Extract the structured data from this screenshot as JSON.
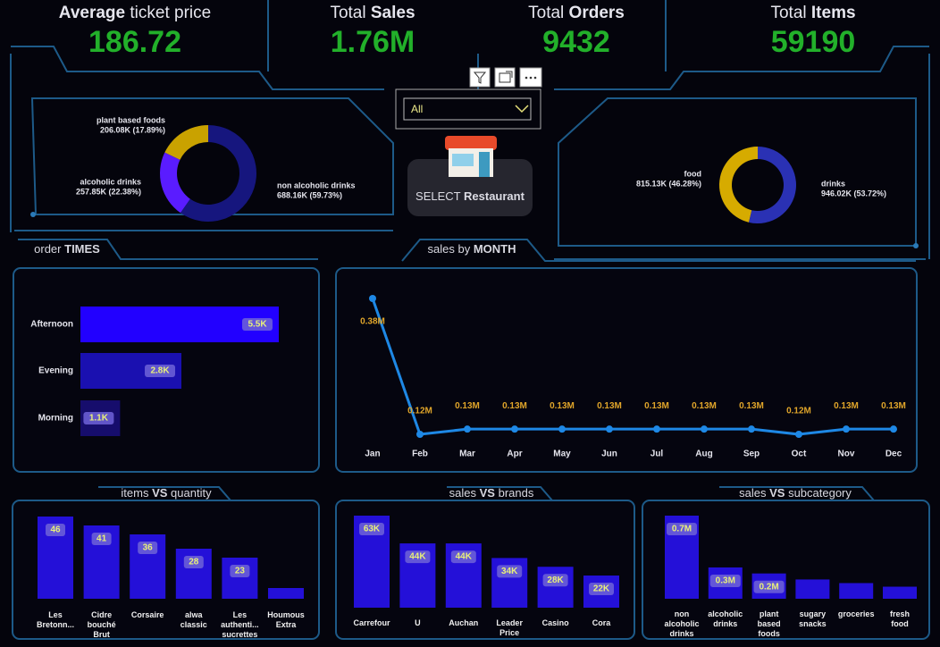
{
  "kpis": [
    {
      "title_parts": [
        {
          "text": "Average",
          "bold": true
        },
        {
          "text": "ticket price",
          "bold": false
        }
      ],
      "value": 186.72
    },
    {
      "title_parts": [
        {
          "text": "Total",
          "bold": false
        },
        {
          "text": "Sales",
          "bold": true
        }
      ],
      "value": "1.76M"
    },
    {
      "title_parts": [
        {
          "text": "Total",
          "bold": false
        },
        {
          "text": "Orders",
          "bold": true
        }
      ],
      "value": 9432
    },
    {
      "title_parts": [
        {
          "text": "Total",
          "bold": false
        },
        {
          "text": "Items",
          "bold": true
        }
      ],
      "value": 59190
    }
  ],
  "slicer": {
    "selected": "All"
  },
  "button": {
    "parts": [
      {
        "text": "SELECT",
        "bold": false
      },
      {
        "text": "Restaurant",
        "bold": true
      }
    ]
  },
  "chart_data": [
    {
      "type": "donut",
      "categories": [
        "plant based foods",
        "alcoholic drinks",
        "non alcoholic drinks"
      ],
      "values": [
        206080,
        257850,
        688160
      ],
      "value_labels": [
        "206.08K (17.89%)",
        "257.85K (22.38%)",
        "688.16K (59.73%)"
      ],
      "colors": [
        "#c9a200",
        "#5a1cff",
        "#16167e"
      ]
    },
    {
      "type": "donut",
      "categories": [
        "food",
        "drinks"
      ],
      "values": [
        815130,
        946020
      ],
      "value_labels": [
        "815.13K (46.28%)",
        "946.02K (53.72%)"
      ],
      "colors": [
        "#d6ab00",
        "#2a31b4"
      ]
    },
    {
      "type": "hbar",
      "title_parts": [
        {
          "text": "order",
          "bold": false
        },
        {
          "text": "TIMES",
          "bold": true
        }
      ],
      "categories": [
        "Afternoon",
        "Evening",
        "Morning"
      ],
      "values": [
        5500,
        2800,
        1100
      ],
      "value_labels": [
        "5.5K",
        "2.8K",
        "1.1K"
      ],
      "colors": [
        "#2200ff",
        "#1a10b0",
        "#160d6c"
      ]
    },
    {
      "type": "line",
      "title_parts": [
        {
          "text": "sales by",
          "bold": false
        },
        {
          "text": "MONTH",
          "bold": true
        }
      ],
      "categories": [
        "Jan",
        "Feb",
        "Mar",
        "Apr",
        "May",
        "Jun",
        "Jul",
        "Aug",
        "Sep",
        "Oct",
        "Nov",
        "Dec"
      ],
      "values": [
        0.38,
        0.12,
        0.13,
        0.13,
        0.13,
        0.13,
        0.13,
        0.13,
        0.13,
        0.12,
        0.13,
        0.13
      ],
      "value_labels": [
        "0.38M",
        "0.12M",
        "0.13M",
        "0.13M",
        "0.13M",
        "0.13M",
        "0.13M",
        "0.13M",
        "0.13M",
        "0.12M",
        "0.13M",
        "0.13M"
      ],
      "color": "#1e88e5",
      "label_color": "#e0a52a"
    },
    {
      "type": "bar",
      "title_parts": [
        {
          "text": "items",
          "bold": false
        },
        {
          "text": "VS",
          "bold": true
        },
        {
          "text": "quantity",
          "bold": false
        }
      ],
      "categories": [
        "Les Bretonn...",
        "Cidre bouché Brut",
        "Corsaire",
        "alwa classic",
        "Les authenti... sucrettes",
        "Houmous Extra"
      ],
      "values": [
        46,
        41,
        36,
        28,
        23,
        6
      ],
      "value_labels": [
        "46",
        "41",
        "36",
        "28",
        "23",
        null
      ],
      "color": "#2410d8"
    },
    {
      "type": "bar",
      "title_parts": [
        {
          "text": "sales",
          "bold": false
        },
        {
          "text": "VS",
          "bold": true
        },
        {
          "text": "brands",
          "bold": false
        }
      ],
      "categories": [
        "Carrefour",
        "U",
        "Auchan",
        "Leader Price",
        "Casino",
        "Cora"
      ],
      "values": [
        63000,
        44000,
        44000,
        34000,
        28000,
        22000
      ],
      "value_labels": [
        "63K",
        "44K",
        "44K",
        "34K",
        "28K",
        "22K"
      ],
      "color": "#2410d8"
    },
    {
      "type": "bar",
      "title_parts": [
        {
          "text": "sales",
          "bold": false
        },
        {
          "text": "VS",
          "bold": true
        },
        {
          "text": "subcategory",
          "bold": false
        }
      ],
      "categories": [
        "non alcoholic drinks",
        "alcoholic drinks",
        "plant based foods",
        "sugary snacks",
        "groceries",
        "fresh food"
      ],
      "values": [
        0.69,
        0.26,
        0.21,
        0.16,
        0.13,
        0.1
      ],
      "value_labels": [
        "0.7M",
        "0.3M",
        "0.2M",
        null,
        null,
        null
      ],
      "color": "#2410d8"
    }
  ]
}
